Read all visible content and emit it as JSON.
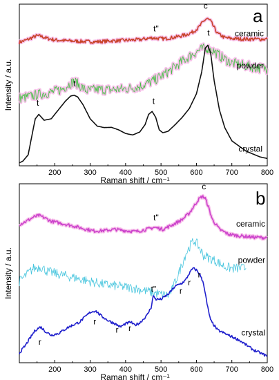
{
  "chart_data": [
    {
      "type": "line",
      "panel_label": "a",
      "xlabel": "Raman shift / cm⁻¹",
      "ylabel": "Intensity / a.u.",
      "xlim": [
        100,
        800
      ],
      "x_ticks": [
        200,
        300,
        400,
        500,
        600,
        700,
        800
      ],
      "series": [
        {
          "name": "ceramic",
          "color": "#c8442a",
          "halo": "#f6b4e6",
          "noise": 0.012,
          "x": [
            100,
            120,
            140,
            150,
            160,
            175,
            200,
            240,
            280,
            320,
            360,
            400,
            440,
            460,
            475,
            490,
            510,
            540,
            570,
            590,
            605,
            615,
            625,
            630,
            640,
            650,
            660,
            680,
            700,
            730,
            760,
            800
          ],
          "y": [
            0.82,
            0.836,
            0.856,
            0.865,
            0.862,
            0.85,
            0.836,
            0.83,
            0.826,
            0.824,
            0.83,
            0.834,
            0.838,
            0.846,
            0.851,
            0.847,
            0.845,
            0.855,
            0.871,
            0.89,
            0.918,
            0.948,
            0.975,
            0.982,
            0.965,
            0.92,
            0.88,
            0.852,
            0.846,
            0.843,
            0.842,
            0.842
          ]
        },
        {
          "name": "powder",
          "color": "#44c244",
          "halo": "#f6b4e6",
          "noise": 0.035,
          "x": [
            100,
            130,
            160,
            190,
            220,
            240,
            255,
            270,
            290,
            320,
            360,
            400,
            440,
            480,
            520,
            560,
            590,
            610,
            630,
            650,
            670,
            700,
            740,
            770,
            800
          ],
          "y": [
            0.44,
            0.452,
            0.468,
            0.48,
            0.5,
            0.535,
            0.555,
            0.528,
            0.49,
            0.5,
            0.498,
            0.504,
            0.52,
            0.56,
            0.62,
            0.69,
            0.74,
            0.77,
            0.782,
            0.76,
            0.72,
            0.68,
            0.66,
            0.648,
            0.642
          ]
        },
        {
          "name": "crystal",
          "color": "#111111",
          "halo": null,
          "noise": 0.0,
          "x": [
            100,
            110,
            125,
            135,
            145,
            155,
            170,
            190,
            210,
            230,
            245,
            255,
            265,
            280,
            300,
            320,
            340,
            360,
            380,
            400,
            420,
            440,
            455,
            465,
            475,
            485,
            495,
            505,
            520,
            540,
            560,
            580,
            600,
            615,
            625,
            632,
            640,
            650,
            665,
            680,
            700,
            740,
            780,
            800
          ],
          "y": [
            0.0,
            0.012,
            0.055,
            0.18,
            0.3,
            0.33,
            0.29,
            0.3,
            0.36,
            0.42,
            0.455,
            0.46,
            0.448,
            0.395,
            0.3,
            0.25,
            0.24,
            0.242,
            0.225,
            0.2,
            0.19,
            0.21,
            0.26,
            0.33,
            0.35,
            0.31,
            0.225,
            0.205,
            0.215,
            0.26,
            0.31,
            0.37,
            0.47,
            0.62,
            0.78,
            0.8,
            0.75,
            0.56,
            0.36,
            0.24,
            0.15,
            0.08,
            0.04,
            0.03
          ]
        }
      ],
      "annotations": [
        {
          "text": "c",
          "x": 626,
          "y": 1.05
        },
        {
          "text": "t\"",
          "x": 486,
          "y": 0.895
        },
        {
          "text": "t",
          "x": 152,
          "y": 0.39
        },
        {
          "text": "t",
          "x": 256,
          "y": 0.52
        },
        {
          "text": "t",
          "x": 479,
          "y": 0.4
        },
        {
          "text": "t",
          "x": 634,
          "y": 0.865
        }
      ]
    },
    {
      "type": "line",
      "panel_label": "b",
      "xlabel": "Raman shift / cm⁻¹",
      "ylabel": "Intensity / a.u.",
      "xlim": [
        100,
        800
      ],
      "x_ticks": [
        200,
        300,
        400,
        500,
        600,
        700,
        800
      ],
      "series": [
        {
          "name": "ceramic",
          "color": "#cc44cc",
          "halo": "#f6b4e6",
          "noise": 0.01,
          "x": [
            100,
            120,
            140,
            155,
            170,
            190,
            220,
            250,
            280,
            310,
            340,
            370,
            400,
            430,
            460,
            480,
            490,
            505,
            530,
            560,
            580,
            595,
            605,
            615,
            620,
            625,
            632,
            645,
            665,
            690,
            720,
            760,
            800
          ],
          "y": [
            0.83,
            0.85,
            0.875,
            0.885,
            0.872,
            0.85,
            0.836,
            0.822,
            0.805,
            0.79,
            0.792,
            0.8,
            0.792,
            0.786,
            0.8,
            0.812,
            0.808,
            0.8,
            0.825,
            0.86,
            0.9,
            0.948,
            0.982,
            1.0,
            1.0,
            0.99,
            0.95,
            0.86,
            0.8,
            0.77,
            0.76,
            0.752,
            0.748
          ]
        },
        {
          "name": "powder",
          "color": "#44c4dd",
          "halo": null,
          "noise": 0.03,
          "x": [
            100,
            120,
            140,
            160,
            180,
            220,
            260,
            300,
            340,
            380,
            420,
            460,
            500,
            520,
            530,
            550,
            570,
            585,
            595,
            605,
            620,
            640,
            660,
            680,
            700,
            720,
            740
          ],
          "y": [
            0.48,
            0.52,
            0.56,
            0.57,
            0.54,
            0.52,
            0.5,
            0.48,
            0.46,
            0.45,
            0.44,
            0.42,
            0.4,
            0.395,
            0.42,
            0.53,
            0.65,
            0.71,
            0.73,
            0.7,
            0.64,
            0.62,
            0.6,
            0.57,
            0.56,
            0.56,
            0.56
          ]
        },
        {
          "name": "crystal",
          "color": "#1f1fcc",
          "halo": null,
          "noise": 0.008,
          "x": [
            100,
            115,
            130,
            145,
            160,
            175,
            190,
            210,
            240,
            270,
            300,
            315,
            330,
            350,
            370,
            385,
            400,
            415,
            425,
            440,
            460,
            472,
            478,
            486,
            500,
            520,
            540,
            560,
            570,
            580,
            590,
            600,
            610,
            620,
            630,
            640,
            660,
            690,
            720,
            760,
            800
          ],
          "y": [
            0.04,
            0.08,
            0.13,
            0.18,
            0.2,
            0.17,
            0.15,
            0.16,
            0.2,
            0.23,
            0.29,
            0.3,
            0.27,
            0.24,
            0.22,
            0.2,
            0.22,
            0.23,
            0.21,
            0.225,
            0.27,
            0.32,
            0.39,
            0.37,
            0.37,
            0.4,
            0.45,
            0.47,
            0.49,
            0.53,
            0.56,
            0.55,
            0.52,
            0.47,
            0.34,
            0.24,
            0.18,
            0.15,
            0.12,
            0.06,
            0.02
          ]
        }
      ],
      "annotations": [
        {
          "text": "c",
          "x": 621,
          "y": 1.045
        },
        {
          "text": "t\"",
          "x": 486,
          "y": 0.855
        },
        {
          "text": "t\"",
          "x": 479,
          "y": 0.415
        },
        {
          "text": "r",
          "x": 158,
          "y": 0.09
        },
        {
          "text": "r",
          "x": 313,
          "y": 0.215
        },
        {
          "text": "r",
          "x": 376,
          "y": 0.165
        },
        {
          "text": "r",
          "x": 412,
          "y": 0.175
        },
        {
          "text": "r",
          "x": 556,
          "y": 0.405
        },
        {
          "text": "r",
          "x": 580,
          "y": 0.455
        },
        {
          "text": "r",
          "x": 608,
          "y": 0.505
        }
      ]
    }
  ]
}
